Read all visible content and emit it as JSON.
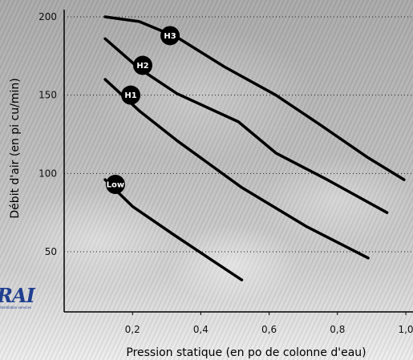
{
  "logo": {
    "text": "RAI",
    "tagline": "Ventilation services"
  },
  "chart_data": {
    "type": "line",
    "xlabel": "Pression statique (en po de colonne d'eau)",
    "ylabel": "Débit d'air (en pi cu/min)",
    "xlim": [
      0.0,
      1.0
    ],
    "ylim": [
      20,
      200
    ],
    "xticks": [
      {
        "value": 0.2,
        "label": "0,2"
      },
      {
        "value": 0.4,
        "label": "0,4"
      },
      {
        "value": 0.6,
        "label": "0,6"
      },
      {
        "value": 0.8,
        "label": "0,8"
      },
      {
        "value": 1.0,
        "label": "1,0"
      }
    ],
    "yticks": [
      50,
      100,
      150,
      200
    ],
    "grid": "horizontal-dotted",
    "series": [
      {
        "name": "H3",
        "label_at": {
          "x": 0.31,
          "y": 188
        },
        "x": [
          0.12,
          0.22,
          0.33,
          0.47,
          0.62,
          0.75,
          0.89,
          0.995
        ],
        "y": [
          200,
          197,
          187,
          168,
          150,
          131,
          110,
          96
        ]
      },
      {
        "name": "H2",
        "label_at": {
          "x": 0.23,
          "y": 169
        },
        "x": [
          0.12,
          0.22,
          0.33,
          0.51,
          0.62,
          0.77,
          0.945
        ],
        "y": [
          186,
          167,
          151,
          133,
          113,
          96,
          75
        ]
      },
      {
        "name": "H1",
        "label_at": {
          "x": 0.195,
          "y": 150
        },
        "x": [
          0.12,
          0.22,
          0.33,
          0.52,
          0.71,
          0.89
        ],
        "y": [
          160,
          140,
          121,
          91,
          66,
          46
        ]
      },
      {
        "name": "Low",
        "label_at": {
          "x": 0.15,
          "y": 93
        },
        "x": [
          0.12,
          0.2,
          0.32,
          0.43,
          0.52
        ],
        "y": [
          96,
          79,
          61,
          45,
          32
        ]
      }
    ]
  }
}
